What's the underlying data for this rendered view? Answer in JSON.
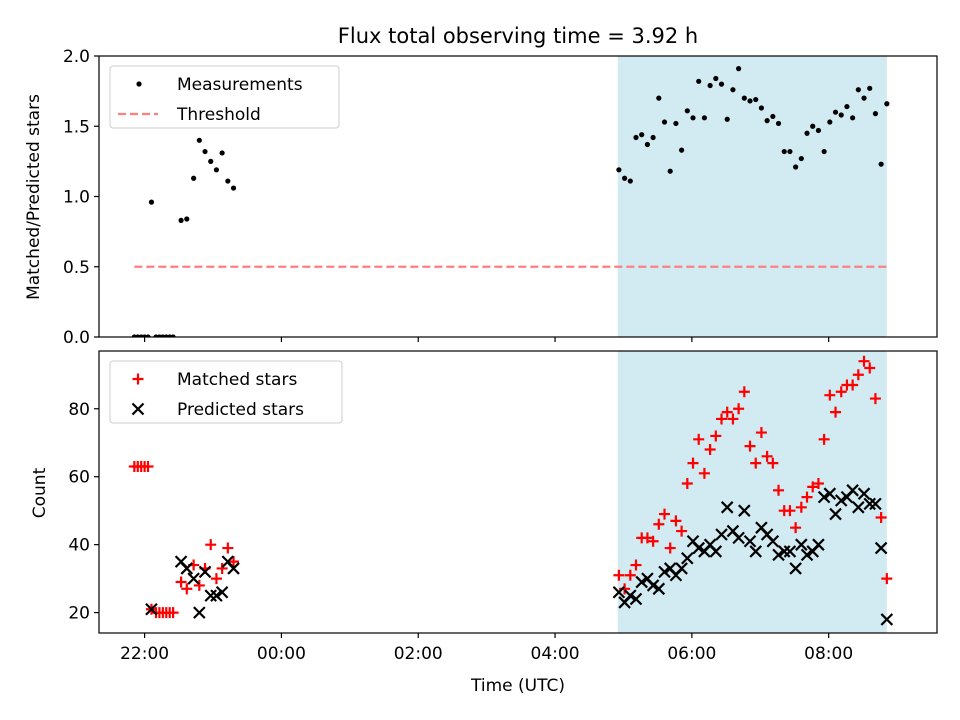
{
  "chart_data": [
    {
      "type": "scatter",
      "title": "Flux total observing time = 3.92 h",
      "ylabel": "Matched/Predicted stars",
      "xlabel": "",
      "xlim": [
        "21:20",
        "09:35"
      ],
      "ylim": [
        0,
        2.0
      ],
      "yticks": [
        0.0,
        0.5,
        1.0,
        1.5,
        2.0
      ],
      "ytick_labels": [
        "0.0",
        "0.5",
        "1.0",
        "1.5",
        "2.0"
      ],
      "xtick_labels_shown": false,
      "grid": false,
      "legend": "upper-left",
      "shaded_interval": {
        "start": "04:55",
        "end": "08:51",
        "color": "#add8e6"
      },
      "series": [
        {
          "name": "Measurements",
          "marker": "dot",
          "color": "#000000",
          "points": [
            [
              "21:51",
              0
            ],
            [
              "21:54",
              0
            ],
            [
              "21:57",
              0
            ],
            [
              "22:00",
              0
            ],
            [
              "22:03",
              0
            ],
            [
              "22:06",
              0.96
            ],
            [
              "22:10",
              0
            ],
            [
              "22:13",
              0
            ],
            [
              "22:16",
              0
            ],
            [
              "22:19",
              0
            ],
            [
              "22:22",
              0
            ],
            [
              "22:25",
              0
            ],
            [
              "22:32",
              0.83
            ],
            [
              "22:37",
              0.84
            ],
            [
              "22:43",
              1.13
            ],
            [
              "22:48",
              1.4
            ],
            [
              "22:53",
              1.32
            ],
            [
              "22:58",
              1.25
            ],
            [
              "23:03",
              1.19
            ],
            [
              "23:08",
              1.31
            ],
            [
              "23:13",
              1.11
            ],
            [
              "23:18",
              1.06
            ],
            [
              "04:56",
              1.19
            ],
            [
              "05:01",
              1.13
            ],
            [
              "05:06",
              1.11
            ],
            [
              "05:11",
              1.42
            ],
            [
              "05:16",
              1.44
            ],
            [
              "05:21",
              1.37
            ],
            [
              "05:26",
              1.42
            ],
            [
              "05:31",
              1.7
            ],
            [
              "05:36",
              1.53
            ],
            [
              "05:41",
              1.18
            ],
            [
              "05:46",
              1.52
            ],
            [
              "05:51",
              1.33
            ],
            [
              "05:56",
              1.61
            ],
            [
              "06:01",
              1.56
            ],
            [
              "06:06",
              1.82
            ],
            [
              "06:11",
              1.56
            ],
            [
              "06:16",
              1.79
            ],
            [
              "06:21",
              1.84
            ],
            [
              "06:26",
              1.8
            ],
            [
              "06:31",
              1.55
            ],
            [
              "06:36",
              1.76
            ],
            [
              "06:41",
              1.91
            ],
            [
              "06:46",
              1.7
            ],
            [
              "06:51",
              1.68
            ],
            [
              "06:56",
              1.69
            ],
            [
              "07:01",
              1.63
            ],
            [
              "07:06",
              1.54
            ],
            [
              "07:11",
              1.57
            ],
            [
              "07:16",
              1.52
            ],
            [
              "07:21",
              1.32
            ],
            [
              "07:26",
              1.32
            ],
            [
              "07:31",
              1.21
            ],
            [
              "07:36",
              1.27
            ],
            [
              "07:41",
              1.45
            ],
            [
              "07:46",
              1.5
            ],
            [
              "07:51",
              1.47
            ],
            [
              "07:56",
              1.32
            ],
            [
              "08:01",
              1.53
            ],
            [
              "08:06",
              1.6
            ],
            [
              "08:11",
              1.58
            ],
            [
              "08:16",
              1.64
            ],
            [
              "08:21",
              1.56
            ],
            [
              "08:26",
              1.76
            ],
            [
              "08:31",
              1.7
            ],
            [
              "08:36",
              1.77
            ],
            [
              "08:41",
              1.59
            ],
            [
              "08:46",
              1.23
            ],
            [
              "08:51",
              1.66
            ]
          ]
        },
        {
          "name": "Threshold",
          "marker": "dashed-line",
          "color": "#ff7f7f",
          "points": [
            [
              "21:51",
              0.5
            ],
            [
              "08:51",
              0.5
            ]
          ]
        }
      ]
    },
    {
      "type": "scatter",
      "title": "",
      "ylabel": "Count",
      "xlabel": "Time (UTC)",
      "xlim": [
        "21:20",
        "09:35"
      ],
      "xticks": [
        "22:00",
        "00:00",
        "02:00",
        "04:00",
        "06:00",
        "08:00"
      ],
      "ylim": [
        14,
        97
      ],
      "yticks": [
        20,
        40,
        60,
        80
      ],
      "ytick_labels": [
        "20",
        "40",
        "60",
        "80"
      ],
      "grid": false,
      "legend": "upper-left",
      "shaded_interval": {
        "start": "04:55",
        "end": "08:51",
        "color": "#add8e6"
      },
      "series": [
        {
          "name": "Matched stars",
          "marker": "plus",
          "color": "#ff0000",
          "points": [
            [
              "21:51",
              63
            ],
            [
              "21:54",
              63
            ],
            [
              "21:57",
              63
            ],
            [
              "22:00",
              63
            ],
            [
              "22:03",
              63
            ],
            [
              "22:06",
              21
            ],
            [
              "22:10",
              20
            ],
            [
              "22:13",
              20
            ],
            [
              "22:16",
              20
            ],
            [
              "22:19",
              20
            ],
            [
              "22:22",
              20
            ],
            [
              "22:25",
              20
            ],
            [
              "22:32",
              29
            ],
            [
              "22:37",
              27
            ],
            [
              "22:43",
              34
            ],
            [
              "22:48",
              28
            ],
            [
              "22:53",
              33
            ],
            [
              "22:58",
              40
            ],
            [
              "23:03",
              30
            ],
            [
              "23:08",
              33
            ],
            [
              "23:13",
              39
            ],
            [
              "23:18",
              35
            ],
            [
              "04:56",
              31
            ],
            [
              "05:01",
              27
            ],
            [
              "05:06",
              31
            ],
            [
              "05:11",
              34
            ],
            [
              "05:16",
              42
            ],
            [
              "05:21",
              42
            ],
            [
              "05:26",
              41
            ],
            [
              "05:31",
              46
            ],
            [
              "05:36",
              49
            ],
            [
              "05:41",
              39
            ],
            [
              "05:46",
              47
            ],
            [
              "05:51",
              44
            ],
            [
              "05:56",
              58
            ],
            [
              "06:01",
              64
            ],
            [
              "06:06",
              71
            ],
            [
              "06:11",
              61
            ],
            [
              "06:16",
              68
            ],
            [
              "06:21",
              72
            ],
            [
              "06:26",
              77
            ],
            [
              "06:31",
              79
            ],
            [
              "06:36",
              77
            ],
            [
              "06:41",
              80
            ],
            [
              "06:46",
              85
            ],
            [
              "06:51",
              69
            ],
            [
              "06:56",
              64
            ],
            [
              "07:01",
              73
            ],
            [
              "07:06",
              66
            ],
            [
              "07:11",
              64
            ],
            [
              "07:16",
              56
            ],
            [
              "07:21",
              50
            ],
            [
              "07:26",
              50
            ],
            [
              "07:31",
              45
            ],
            [
              "07:36",
              51
            ],
            [
              "07:41",
              54
            ],
            [
              "07:46",
              57
            ],
            [
              "07:51",
              58
            ],
            [
              "07:56",
              71
            ],
            [
              "08:01",
              84
            ],
            [
              "08:06",
              79
            ],
            [
              "08:11",
              85
            ],
            [
              "08:16",
              87
            ],
            [
              "08:21",
              87
            ],
            [
              "08:26",
              90
            ],
            [
              "08:31",
              94
            ],
            [
              "08:36",
              92
            ],
            [
              "08:41",
              83
            ],
            [
              "08:46",
              48
            ],
            [
              "08:51",
              30
            ]
          ]
        },
        {
          "name": "Predicted stars",
          "marker": "x",
          "color": "#000000",
          "points": [
            [
              "22:06",
              21
            ],
            [
              "22:32",
              35
            ],
            [
              "22:37",
              33
            ],
            [
              "22:43",
              30
            ],
            [
              "22:48",
              20
            ],
            [
              "22:53",
              32
            ],
            [
              "22:58",
              25
            ],
            [
              "23:03",
              25
            ],
            [
              "23:08",
              26
            ],
            [
              "23:13",
              35
            ],
            [
              "23:18",
              33
            ],
            [
              "04:56",
              26
            ],
            [
              "05:01",
              23
            ],
            [
              "05:06",
              25
            ],
            [
              "05:11",
              24
            ],
            [
              "05:16",
              29
            ],
            [
              "05:21",
              30
            ],
            [
              "05:26",
              28
            ],
            [
              "05:31",
              27
            ],
            [
              "05:36",
              32
            ],
            [
              "05:41",
              33
            ],
            [
              "05:46",
              31
            ],
            [
              "05:51",
              33
            ],
            [
              "05:56",
              36
            ],
            [
              "06:01",
              41
            ],
            [
              "06:06",
              39
            ],
            [
              "06:11",
              38
            ],
            [
              "06:16",
              40
            ],
            [
              "06:21",
              38
            ],
            [
              "06:26",
              43
            ],
            [
              "06:31",
              51
            ],
            [
              "06:36",
              44
            ],
            [
              "06:41",
              42
            ],
            [
              "06:46",
              50
            ],
            [
              "06:51",
              41
            ],
            [
              "06:56",
              38
            ],
            [
              "07:01",
              45
            ],
            [
              "07:06",
              43
            ],
            [
              "07:11",
              41
            ],
            [
              "07:16",
              37
            ],
            [
              "07:21",
              38
            ],
            [
              "07:26",
              38
            ],
            [
              "07:31",
              33
            ],
            [
              "07:36",
              40
            ],
            [
              "07:41",
              37
            ],
            [
              "07:46",
              38
            ],
            [
              "07:51",
              40
            ],
            [
              "07:56",
              54
            ],
            [
              "08:01",
              55
            ],
            [
              "08:06",
              49
            ],
            [
              "08:11",
              53
            ],
            [
              "08:16",
              54
            ],
            [
              "08:21",
              56
            ],
            [
              "08:26",
              51
            ],
            [
              "08:31",
              55
            ],
            [
              "08:36",
              52
            ],
            [
              "08:41",
              52
            ],
            [
              "08:46",
              39
            ],
            [
              "08:51",
              18
            ]
          ]
        }
      ]
    }
  ]
}
